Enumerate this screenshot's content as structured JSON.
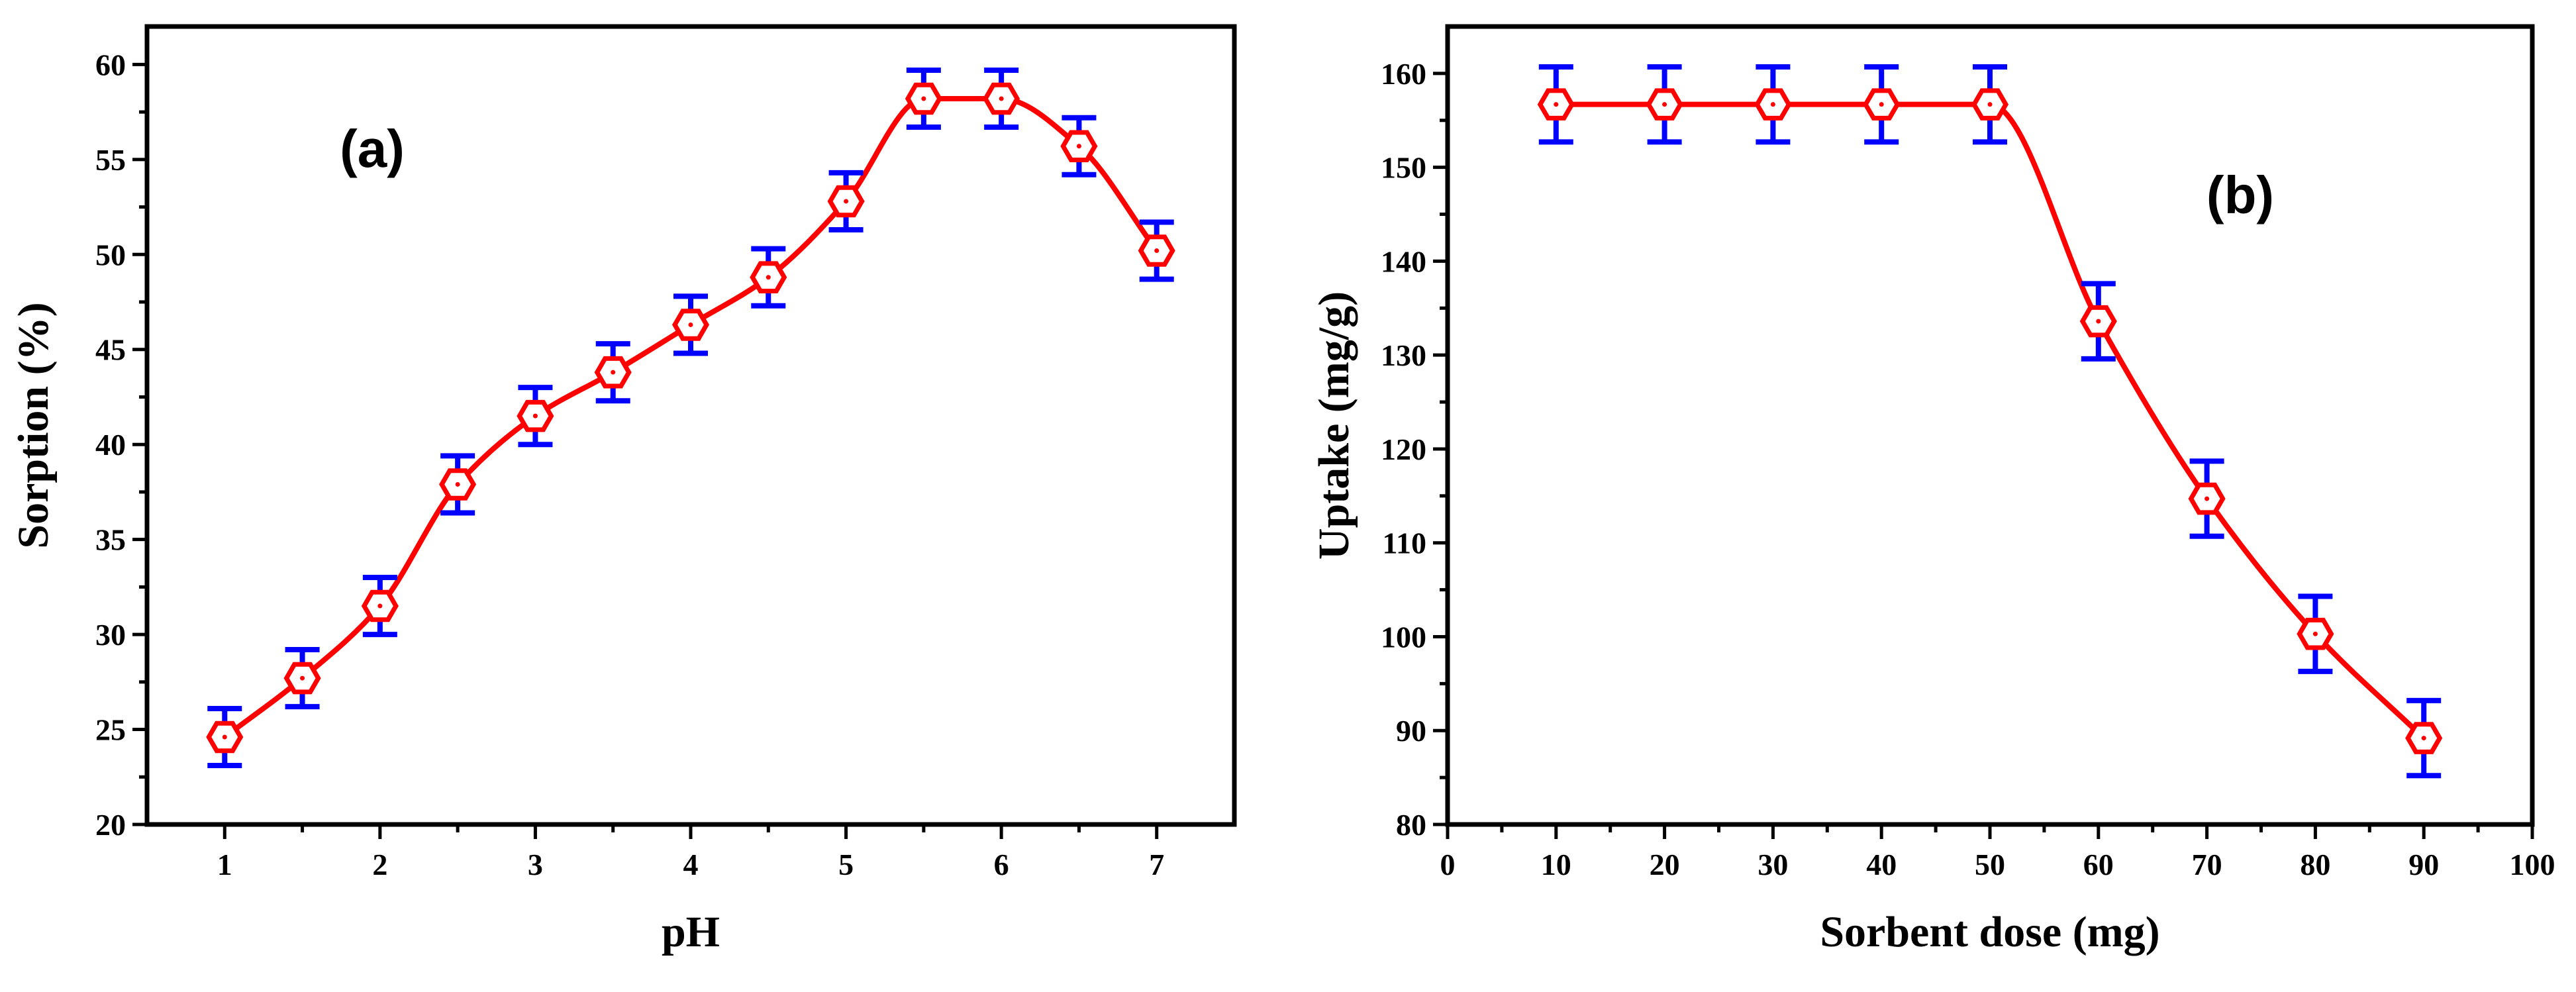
{
  "chart_data": [
    {
      "type": "line",
      "panel_label": "(a)",
      "xlabel": "pH",
      "ylabel": "Sorption (%)",
      "xlim": [
        0.5,
        7.5
      ],
      "ylim": [
        20,
        62
      ],
      "xticks": [
        1,
        2,
        3,
        4,
        5,
        6,
        7
      ],
      "xtick_labels": [
        "1",
        "2",
        "3",
        "4",
        "5",
        "6",
        "7"
      ],
      "yticks": [
        20,
        25,
        30,
        35,
        40,
        45,
        50,
        55,
        60
      ],
      "ytick_labels": [
        "20",
        "25",
        "30",
        "35",
        "40",
        "45",
        "50",
        "55",
        "60"
      ],
      "x": [
        1,
        1.5,
        2,
        2.5,
        3,
        3.5,
        4,
        4.5,
        5,
        5.5,
        6,
        6.5,
        7
      ],
      "series": [
        {
          "values": [
            24.6,
            27.7,
            31.5,
            37.9,
            41.5,
            43.8,
            46.3,
            48.8,
            52.8,
            58.2,
            58.2,
            55.7,
            50.2
          ],
          "error": [
            1.5,
            1.5,
            1.5,
            1.5,
            1.5,
            1.5,
            1.5,
            1.5,
            1.5,
            1.5,
            1.5,
            1.5,
            1.5
          ]
        }
      ],
      "grid": false,
      "colors": {
        "line": "#ff0000",
        "marker": "#ff0000",
        "error_bar": "#0000ff"
      }
    },
    {
      "type": "line",
      "panel_label": "(b)",
      "xlabel": "Sorbent dose (mg)",
      "ylabel": "Uptake (mg/g)",
      "xlim": [
        0,
        100
      ],
      "ylim": [
        80,
        165
      ],
      "xticks": [
        0,
        10,
        20,
        30,
        40,
        50,
        60,
        70,
        80,
        90,
        100
      ],
      "xtick_labels": [
        "0",
        "10",
        "20",
        "30",
        "40",
        "50",
        "60",
        "70",
        "80",
        "90",
        "100"
      ],
      "yticks": [
        80,
        90,
        100,
        110,
        120,
        130,
        140,
        150,
        160
      ],
      "ytick_labels": [
        "80",
        "90",
        "100",
        "110",
        "120",
        "130",
        "140",
        "150",
        "160"
      ],
      "x": [
        10,
        20,
        30,
        40,
        50,
        60,
        70,
        80,
        90
      ],
      "series": [
        {
          "values": [
            156.7,
            156.7,
            156.7,
            156.7,
            156.7,
            133.6,
            114.7,
            100.3,
            89.2
          ],
          "error": [
            4,
            4,
            4,
            4,
            4,
            4,
            4,
            4,
            4
          ]
        }
      ],
      "grid": false,
      "colors": {
        "line": "#ff0000",
        "marker": "#ff0000",
        "error_bar": "#0000ff"
      }
    }
  ]
}
